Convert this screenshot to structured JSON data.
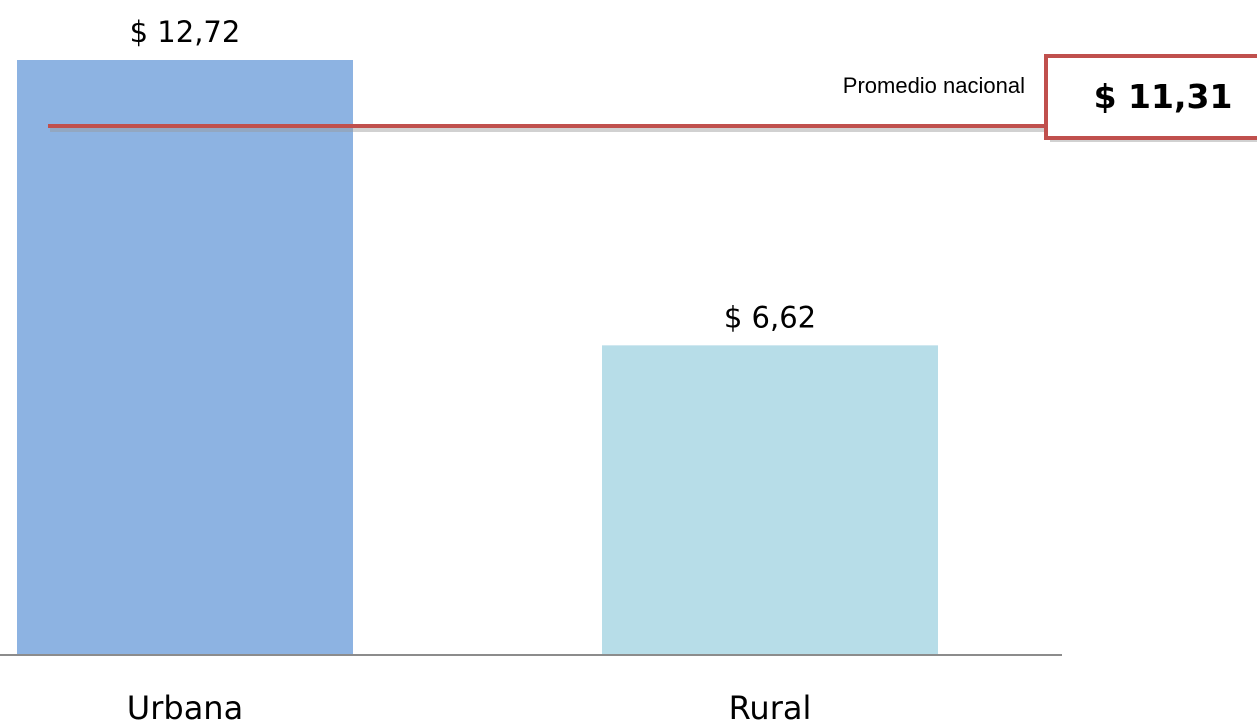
{
  "chart_data": {
    "type": "bar",
    "categories": [
      "Urbana",
      "Rural"
    ],
    "values": [
      12.72,
      6.62
    ],
    "value_labels": [
      "$ 12,72",
      "$ 6,62"
    ],
    "bar_colors": [
      "#8db3e2",
      "#b7dde8"
    ],
    "reference_line": {
      "label": "Promedio nacional",
      "value": 11.31,
      "value_label": "$ 11,31",
      "color": "#c0504d"
    },
    "title": "",
    "xlabel": "",
    "ylabel": "",
    "ylim": [
      0,
      13.6
    ],
    "grid": false,
    "legend": "none"
  }
}
